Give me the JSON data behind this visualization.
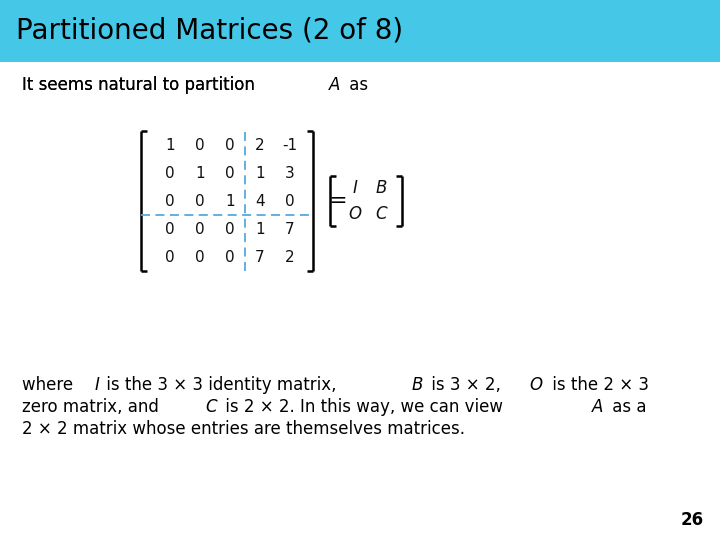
{
  "title": "Partitioned Matrices (2 of 8)",
  "title_bg": "#45C8E8",
  "title_color": "#000000",
  "title_fontsize": 20,
  "bg_color": "#ffffff",
  "matrix": [
    [
      1,
      0,
      0,
      2,
      -1
    ],
    [
      0,
      1,
      0,
      1,
      3
    ],
    [
      0,
      0,
      1,
      4,
      0
    ],
    [
      0,
      0,
      0,
      1,
      7
    ],
    [
      0,
      0,
      0,
      7,
      2
    ]
  ],
  "partition_col": 3,
  "partition_row": 3,
  "rhs_labels": [
    [
      "I",
      "B"
    ],
    [
      "O",
      "C"
    ]
  ],
  "page_number": "26",
  "dash_color": "#55AADD",
  "matrix_fontsize": 11,
  "rhs_fontsize": 12
}
